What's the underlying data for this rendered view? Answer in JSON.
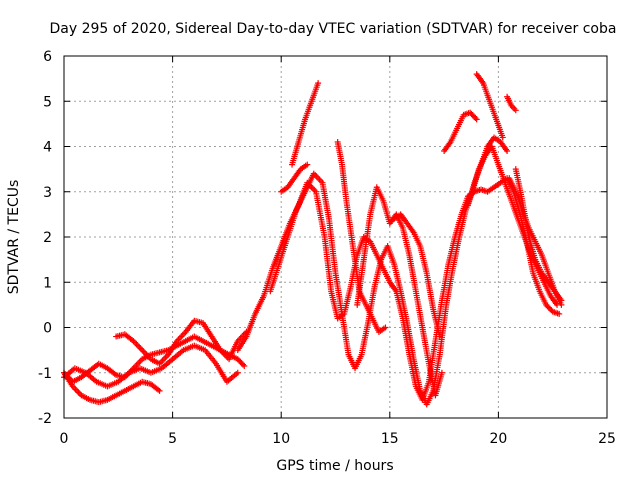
{
  "chart_data": {
    "type": "scatter",
    "title": "Day 295 of 2020, Sidereal Day-to-day VTEC variation (SDTVAR) for receiver coba",
    "xlabel": "GPS time / hours",
    "ylabel": "SDTVAR / TECUs",
    "xlim": [
      0,
      25
    ],
    "ylim": [
      -2,
      6
    ],
    "x_ticks": [
      0,
      5,
      10,
      15,
      20,
      25
    ],
    "y_ticks": [
      -2,
      -1,
      0,
      1,
      2,
      3,
      4,
      5,
      6
    ],
    "grid": true,
    "marker": "plus",
    "color": "#ff0000",
    "series": [
      {
        "x": [
          0.0,
          0.4,
          0.8,
          1.2,
          1.6,
          2.0,
          2.4,
          2.8,
          3.2,
          3.6,
          4.0,
          4.4,
          4.8,
          5.2,
          5.6,
          6.0,
          6.4,
          6.8,
          7.2,
          7.6,
          8.0,
          8.3
        ],
        "y": [
          -1.0,
          -1.2,
          -1.1,
          -0.95,
          -0.8,
          -0.9,
          -1.05,
          -1.1,
          -0.9,
          -0.7,
          -0.6,
          -0.55,
          -0.5,
          -0.4,
          -0.3,
          -0.2,
          -0.3,
          -0.4,
          -0.5,
          -0.6,
          -0.7,
          -0.85
        ]
      },
      {
        "x": [
          0.0,
          0.4,
          0.8,
          1.2,
          1.6,
          2.0,
          2.4,
          2.8,
          3.2,
          3.6,
          4.0,
          4.4
        ],
        "y": [
          -1.0,
          -1.3,
          -1.5,
          -1.6,
          -1.65,
          -1.6,
          -1.5,
          -1.4,
          -1.3,
          -1.2,
          -1.25,
          -1.4
        ]
      },
      {
        "x": [
          2.4,
          2.8,
          3.2,
          3.6,
          4.0,
          4.4,
          4.8,
          5.2,
          5.6,
          6.0,
          6.4,
          6.8,
          7.2,
          7.6,
          8.0,
          8.4
        ],
        "y": [
          -0.2,
          -0.15,
          -0.3,
          -0.5,
          -0.7,
          -0.8,
          -0.6,
          -0.3,
          -0.1,
          0.15,
          0.1,
          -0.2,
          -0.5,
          -0.7,
          -0.3,
          -0.1
        ]
      },
      {
        "x": [
          0.0,
          0.5,
          1.0,
          1.5,
          2.0,
          2.5,
          3.0,
          3.5,
          4.0,
          4.5,
          5.0,
          5.5,
          6.0,
          6.5,
          7.0,
          7.5,
          8.0
        ],
        "y": [
          -1.1,
          -0.9,
          -1.0,
          -1.2,
          -1.3,
          -1.2,
          -1.0,
          -0.9,
          -1.0,
          -0.9,
          -0.7,
          -0.5,
          -0.4,
          -0.5,
          -0.8,
          -1.2,
          -1.0
        ]
      },
      {
        "x": [
          8.0,
          8.4,
          8.8,
          9.2,
          9.6,
          10.0,
          10.4,
          10.8,
          11.2,
          11.6,
          12.0,
          12.3,
          12.6,
          12.9,
          13.2,
          13.5,
          13.8,
          14.1,
          14.4,
          14.7,
          15.0,
          15.3,
          15.6,
          15.9,
          16.2,
          16.5,
          16.8,
          17.1,
          17.4,
          17.7,
          18.0,
          18.3,
          18.6,
          18.9,
          19.2,
          19.5,
          19.8,
          20.1,
          20.4,
          20.7,
          21.0,
          21.3,
          21.6,
          21.9,
          22.2,
          22.5,
          22.8
        ],
        "y": [
          -0.5,
          -0.2,
          0.3,
          0.7,
          1.3,
          1.8,
          2.3,
          2.7,
          3.2,
          3.0,
          2.0,
          0.8,
          0.2,
          0.3,
          0.9,
          1.6,
          2.0,
          1.9,
          1.6,
          1.3,
          1.0,
          0.8,
          0.2,
          -0.6,
          -1.3,
          -1.6,
          -1.2,
          -0.3,
          0.6,
          1.4,
          2.0,
          2.5,
          2.9,
          3.0,
          3.05,
          3.0,
          3.1,
          3.2,
          3.3,
          3.0,
          2.5,
          1.9,
          1.2,
          0.8,
          0.5,
          0.35,
          0.3
        ]
      },
      {
        "x": [
          9.5,
          9.9,
          10.3,
          10.7,
          11.1,
          11.5,
          11.9,
          12.2,
          12.5,
          12.8,
          13.1,
          13.4,
          13.7,
          14.0,
          14.3,
          14.6,
          14.9,
          15.2,
          15.5,
          15.8,
          16.1,
          16.4,
          16.7,
          17.0,
          17.3,
          17.6,
          17.9,
          18.2,
          18.5,
          18.8,
          19.1,
          19.4,
          19.7,
          20.0,
          20.3,
          20.6,
          20.9,
          21.2,
          21.5,
          21.8,
          22.1,
          22.4,
          22.7
        ],
        "y": [
          0.8,
          1.4,
          2.0,
          2.6,
          3.0,
          3.4,
          3.2,
          2.4,
          1.2,
          0.3,
          -0.6,
          -0.9,
          -0.6,
          0.1,
          0.9,
          1.5,
          1.8,
          1.4,
          0.8,
          0.1,
          -0.7,
          -1.4,
          -1.7,
          -1.4,
          -0.6,
          0.5,
          1.3,
          2.0,
          2.6,
          3.0,
          3.5,
          3.8,
          4.0,
          3.6,
          3.2,
          2.8,
          2.4,
          2.0,
          1.6,
          1.3,
          1.0,
          0.7,
          0.5
        ]
      },
      {
        "x": [
          10.5,
          10.8,
          11.1,
          11.4,
          11.7
        ],
        "y": [
          3.6,
          4.1,
          4.6,
          5.0,
          5.4
        ]
      },
      {
        "x": [
          10.0,
          10.3,
          10.6,
          10.9,
          11.2
        ],
        "y": [
          3.0,
          3.1,
          3.3,
          3.5,
          3.6
        ]
      },
      {
        "x": [
          12.6,
          12.8,
          13.0,
          13.3,
          13.6,
          13.9,
          14.2,
          14.5,
          14.8
        ],
        "y": [
          4.1,
          3.6,
          2.8,
          1.8,
          0.8,
          0.5,
          0.2,
          -0.1,
          0.0
        ]
      },
      {
        "x": [
          13.5,
          13.8,
          14.1,
          14.4,
          14.7,
          15.0,
          15.3,
          15.6,
          15.9,
          16.2,
          16.5,
          16.8,
          17.1,
          17.4
        ],
        "y": [
          0.5,
          1.5,
          2.5,
          3.1,
          2.8,
          2.3,
          2.5,
          2.2,
          1.6,
          0.8,
          0.0,
          -0.8,
          -1.5,
          -1.0
        ]
      },
      {
        "x": [
          15.2,
          15.5,
          15.8,
          16.1,
          16.4,
          16.7,
          17.0,
          17.3
        ],
        "y": [
          2.4,
          2.5,
          2.3,
          2.1,
          1.8,
          1.2,
          0.4,
          -0.2
        ]
      },
      {
        "x": [
          17.5,
          17.8,
          18.1,
          18.4,
          18.7,
          19.0
        ],
        "y": [
          3.9,
          4.1,
          4.4,
          4.7,
          4.75,
          4.6
        ]
      },
      {
        "x": [
          18.6,
          18.9,
          19.2,
          19.5,
          19.8,
          20.1,
          20.4
        ],
        "y": [
          2.7,
          3.2,
          3.6,
          4.0,
          4.2,
          4.1,
          3.9
        ]
      },
      {
        "x": [
          19.0,
          19.3,
          19.6,
          19.9,
          20.2
        ],
        "y": [
          5.6,
          5.4,
          5.0,
          4.6,
          4.2
        ]
      },
      {
        "x": [
          20.4,
          20.6,
          20.8
        ],
        "y": [
          5.1,
          4.9,
          4.8
        ]
      },
      {
        "x": [
          20.5,
          20.8,
          21.1,
          21.4,
          21.7,
          22.0,
          22.3,
          22.6,
          22.9
        ],
        "y": [
          3.3,
          3.0,
          2.6,
          2.2,
          1.9,
          1.6,
          1.2,
          0.8,
          0.5
        ]
      },
      {
        "x": [
          20.8,
          21.1,
          21.4,
          21.7,
          22.0,
          22.3,
          22.6,
          22.9
        ],
        "y": [
          3.5,
          2.8,
          2.0,
          1.5,
          1.2,
          1.0,
          0.8,
          0.6
        ]
      }
    ]
  }
}
